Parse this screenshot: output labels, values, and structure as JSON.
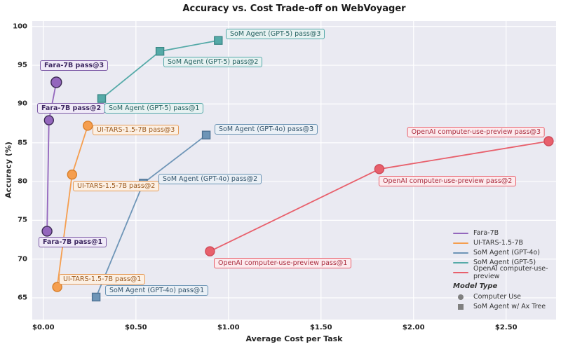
{
  "chart_data": {
    "type": "line-scatter",
    "title": "Accuracy vs. Cost Trade-off on WebVoyager",
    "xlabel": "Average Cost per Task",
    "ylabel": "Accuracy (%)",
    "xlim": [
      -0.06,
      2.77
    ],
    "ylim": [
      62.2,
      100.7
    ],
    "plot_bg": "#eaeaf2",
    "grid_color": "#ffffff",
    "xticks": [
      {
        "v": 0.0,
        "label": "$0.00"
      },
      {
        "v": 0.5,
        "label": "$0.50"
      },
      {
        "v": 1.0,
        "label": "$1.00"
      },
      {
        "v": 1.5,
        "label": "$1.50"
      },
      {
        "v": 2.0,
        "label": "$2.00"
      },
      {
        "v": 2.5,
        "label": "$2.50"
      }
    ],
    "yticks": [
      {
        "v": 65,
        "label": "65"
      },
      {
        "v": 70,
        "label": "70"
      },
      {
        "v": 75,
        "label": "75"
      },
      {
        "v": 80,
        "label": "80"
      },
      {
        "v": 85,
        "label": "85"
      },
      {
        "v": 90,
        "label": "90"
      },
      {
        "v": 95,
        "label": "95"
      },
      {
        "v": 100,
        "label": "100"
      }
    ],
    "series": [
      {
        "name": "Fara-7B",
        "color": "#9467bd",
        "edge": "#3c2a54",
        "marker": "circle",
        "label_style": {
          "bg": "#f0eaf8",
          "border": "#7d5ba6",
          "text": "#3f2a63",
          "bold": true
        },
        "points": [
          {
            "x": 0.02,
            "y": 73.6,
            "label": "Fara-7B pass@1",
            "dx": -12,
            "dy": 8,
            "anchor": "start",
            "r": 7
          },
          {
            "x": 0.03,
            "y": 87.9,
            "label": "Fara-7B pass@2",
            "dx": -17,
            "dy": -25,
            "anchor": "start",
            "r": 6.5
          },
          {
            "x": 0.07,
            "y": 92.8,
            "label": "Fara-7B pass@3",
            "dx": -23,
            "dy": -31,
            "anchor": "start",
            "r": 7.5
          }
        ]
      },
      {
        "name": "UI-TARS-1.5-7B",
        "color": "#f59e4f",
        "edge": "#d87f2a",
        "marker": "circle",
        "label_style": {
          "bg": "#fcf0e4",
          "border": "#e59a57",
          "text": "#9c5a1e",
          "bold": false
        },
        "points": [
          {
            "x": 0.075,
            "y": 66.4,
            "label": "UI-TARS-1.5-7B pass@1",
            "dx": 2,
            "dy": -19,
            "anchor": "start",
            "r": 6.5
          },
          {
            "x": 0.155,
            "y": 80.9,
            "label": "UI-TARS-1.5-7B pass@2",
            "dx": 1,
            "dy": 9,
            "anchor": "start",
            "r": 6.5
          },
          {
            "x": 0.24,
            "y": 87.2,
            "label": "UI-TARS-1.5-7B pass@3",
            "dx": 7,
            "dy": -1,
            "anchor": "start",
            "r": 6.5
          }
        ]
      },
      {
        "name": "SoM Agent (GPT-4o)",
        "color": "#6e95b7",
        "edge": "#4e7294",
        "marker": "square",
        "label_style": {
          "bg": "#eaf0f6",
          "border": "#6a93b4",
          "text": "#33536b",
          "bold": false
        },
        "points": [
          {
            "x": 0.285,
            "y": 65.1,
            "label": "SoM Agent (GPT-4o) pass@1",
            "dx": 13,
            "dy": -17,
            "anchor": "start",
            "r": 5.5
          },
          {
            "x": 0.54,
            "y": 79.8,
            "label": "SoM Agent (GPT-4o) pass@2",
            "dx": 22,
            "dy": -13,
            "anchor": "start",
            "r": 5.5
          },
          {
            "x": 0.88,
            "y": 86.0,
            "label": "SoM Agent (GPT-4o) pass@3",
            "dx": 12,
            "dy": -16,
            "anchor": "start",
            "r": 5.5
          }
        ]
      },
      {
        "name": "SoM Agent (GPT-5)",
        "color": "#55aaa8",
        "edge": "#3b8886",
        "marker": "square",
        "label_style": {
          "bg": "#e7f2f2",
          "border": "#53a8a8",
          "text": "#23605f",
          "bold": false
        },
        "points": [
          {
            "x": 0.315,
            "y": 90.7,
            "label": "SoM Agent (GPT-5) pass@1",
            "dx": 4,
            "dy": 6,
            "anchor": "start",
            "r": 5.5
          },
          {
            "x": 0.63,
            "y": 96.8,
            "label": "SoM Agent (GPT-5) pass@2",
            "dx": 5,
            "dy": 8,
            "anchor": "start",
            "r": 5.5
          },
          {
            "x": 0.945,
            "y": 98.2,
            "label": "SoM Agent (GPT-5) pass@3",
            "dx": 11,
            "dy": -17,
            "anchor": "start",
            "r": 5.5
          }
        ]
      },
      {
        "name": "OpenAI computer-use-preview",
        "color": "#e8606c",
        "edge": "#cf4a59",
        "marker": "circle",
        "label_style": {
          "bg": "#fcebee",
          "border": "#e8606c",
          "text": "#ab2f40",
          "bold": false
        },
        "points": [
          {
            "x": 0.9,
            "y": 71.0,
            "label": "OpenAI computer-use-preview pass@1",
            "dx": 6,
            "dy": 9,
            "anchor": "start",
            "r": 6.5
          },
          {
            "x": 1.815,
            "y": 81.6,
            "label": "OpenAI computer-use-preview pass@2",
            "dx": -1,
            "dy": 10,
            "anchor": "start",
            "r": 6.5
          },
          {
            "x": 2.73,
            "y": 85.2,
            "label": "OpenAI computer-use-preview pass@3",
            "dx": -5,
            "dy": -21,
            "anchor": "end",
            "r": 6.5
          }
        ]
      }
    ],
    "marker_legend": {
      "title": "Model Type",
      "entries": [
        {
          "marker": "circle",
          "label": "Computer Use"
        },
        {
          "marker": "square",
          "label": "SoM Agent w/ Ax Tree"
        }
      ]
    }
  }
}
